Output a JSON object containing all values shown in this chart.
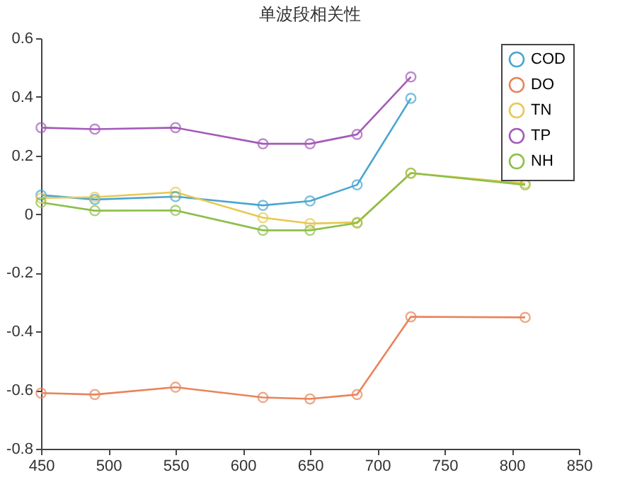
{
  "chart_data": {
    "type": "line",
    "title": "单波段相关性",
    "x": [
      450,
      490,
      550,
      615,
      650,
      685,
      725,
      810
    ],
    "xlim": [
      450,
      850
    ],
    "xticks": [
      450,
      500,
      550,
      600,
      650,
      700,
      750,
      800,
      850
    ],
    "ylim": [
      -0.8,
      0.6
    ],
    "yticks": [
      -0.8,
      -0.6,
      -0.4,
      -0.2,
      0,
      0.2,
      0.4,
      0.6
    ],
    "marker": "circle",
    "legend": "top right",
    "grid": false,
    "series": [
      {
        "name": "COD",
        "color": "#4aa6d0",
        "values": [
          0.065,
          0.05,
          0.06,
          0.03,
          0.045,
          0.1,
          0.395,
          null
        ]
      },
      {
        "name": "DO",
        "color": "#e8845a",
        "values": [
          -0.61,
          -0.615,
          -0.59,
          -0.625,
          -0.63,
          -0.615,
          -0.35,
          -0.352
        ]
      },
      {
        "name": "TN",
        "color": "#e8c850",
        "values": [
          0.055,
          0.058,
          0.075,
          -0.012,
          -0.032,
          -0.028,
          0.14,
          0.105
        ]
      },
      {
        "name": "TP",
        "color": "#a45ab8",
        "values": [
          0.295,
          0.29,
          0.295,
          0.24,
          0.24,
          0.272,
          0.468,
          null
        ]
      },
      {
        "name": "NH",
        "color": "#8cbf4a",
        "values": [
          0.04,
          0.012,
          0.013,
          -0.055,
          -0.055,
          -0.03,
          0.14,
          0.1
        ]
      }
    ]
  }
}
